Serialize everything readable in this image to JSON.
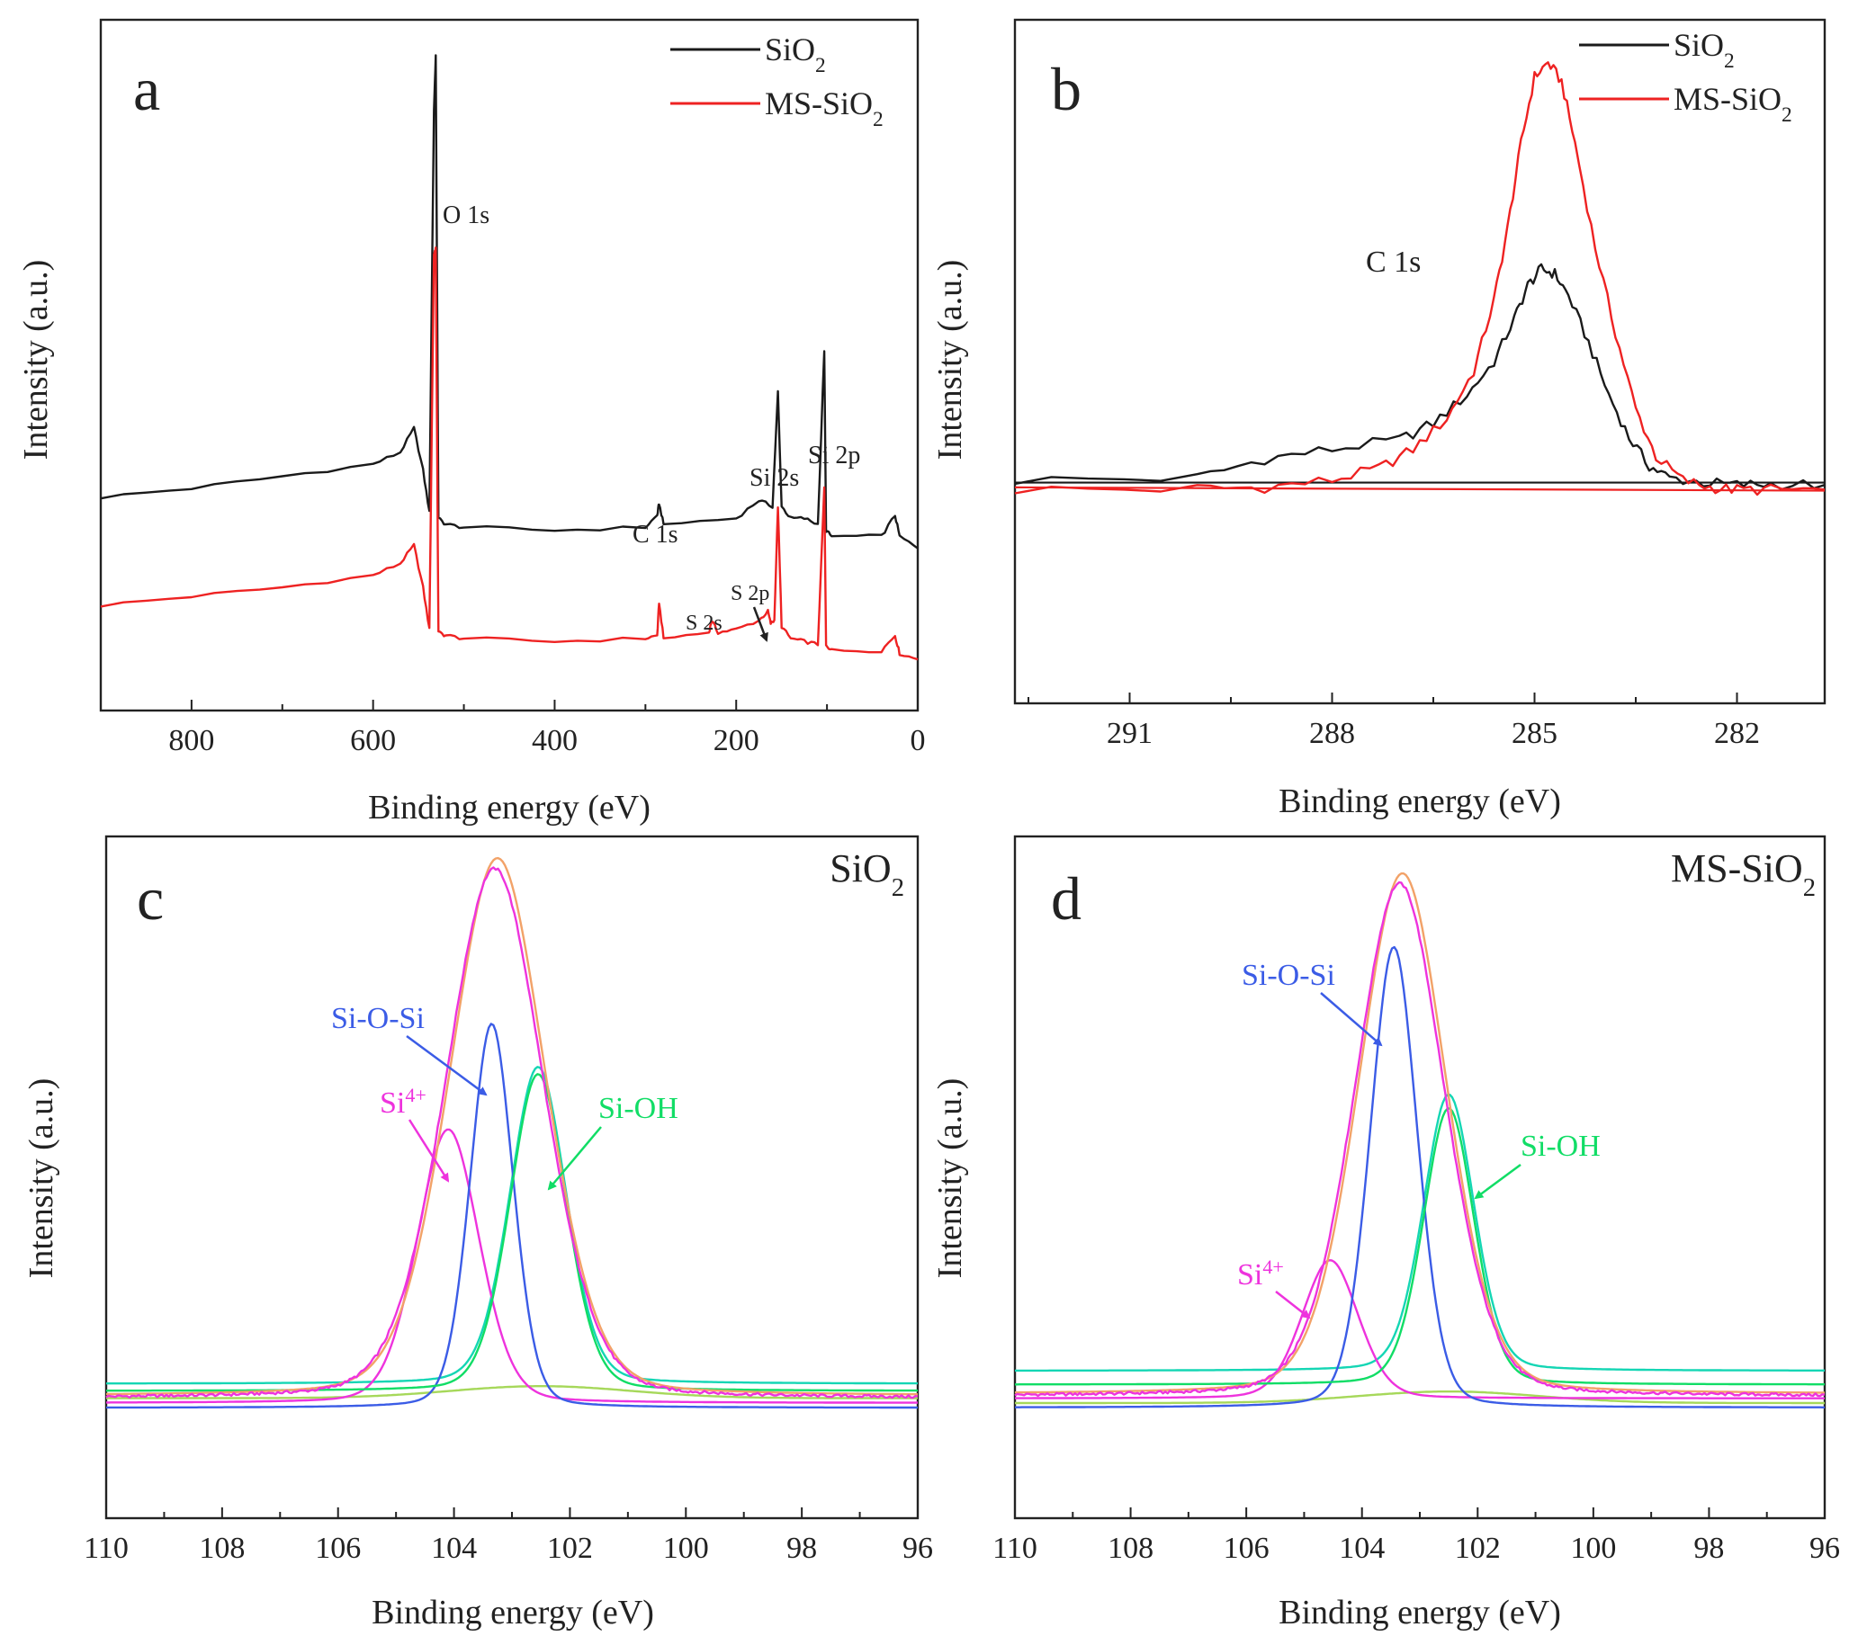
{
  "colors": {
    "sio2": "#1a1a1a",
    "ms_sio2": "#ee2222",
    "envelope": "#f2a268",
    "si4": "#ee33dd",
    "sioSi": "#3b5ce6",
    "siOH": "#11dd66",
    "fit_teal": "#14d6b4",
    "background_fit": "#a6d85a"
  },
  "chart_data": [
    {
      "panel": "a",
      "type": "line",
      "xlabel": "Binding energy (eV)",
      "ylabel": "Intensity (a.u.)",
      "xlim": [
        900,
        0
      ],
      "xticks": [
        800,
        600,
        400,
        200,
        0
      ],
      "legend": {
        "placement": "top-right",
        "entries": [
          "SiO2",
          "MS-SiO2"
        ]
      },
      "series": [
        {
          "name": "SiO2",
          "x": [
            900,
            800,
            700,
            600,
            570,
            555,
            545,
            538,
            533,
            531,
            528,
            520,
            500,
            400,
            300,
            287,
            285,
            280,
            200,
            175,
            160,
            154,
            150,
            140,
            125,
            110,
            103,
            101,
            95,
            40,
            25,
            20,
            0
          ],
          "y": [
            3.35,
            3.5,
            3.7,
            3.9,
            4.1,
            4.5,
            3.8,
            3.1,
            9.8,
            10.7,
            3.0,
            2.9,
            2.85,
            2.8,
            2.85,
            3.05,
            3.25,
            2.9,
            3.0,
            3.3,
            3.2,
            5.1,
            3.2,
            3.0,
            3.0,
            2.9,
            5.8,
            2.8,
            2.7,
            2.7,
            3.05,
            2.7,
            2.5
          ]
        },
        {
          "name": "MS-SiO2",
          "x": [
            900,
            800,
            700,
            600,
            570,
            555,
            545,
            538,
            533,
            531,
            528,
            520,
            500,
            400,
            300,
            287,
            285,
            280,
            230,
            227,
            220,
            200,
            175,
            165,
            162,
            158,
            154,
            150,
            140,
            125,
            110,
            103,
            101,
            95,
            40,
            25,
            20,
            0
          ],
          "y": [
            1.55,
            1.7,
            1.85,
            2.05,
            2.25,
            2.55,
            1.85,
            1.15,
            7.4,
            7.5,
            1.1,
            1.05,
            1.0,
            0.95,
            1.0,
            1.05,
            1.6,
            1.0,
            1.1,
            1.3,
            1.1,
            1.15,
            1.3,
            1.45,
            1.25,
            1.3,
            3.2,
            1.2,
            1.0,
            0.95,
            0.9,
            3.5,
            0.9,
            0.8,
            0.8,
            1.05,
            0.75,
            0.65
          ]
        }
      ],
      "annotations": [
        "O 1s",
        "C 1s",
        "Si 2s",
        "Si 2p",
        "S 2s",
        "S 2p"
      ]
    },
    {
      "panel": "b",
      "type": "line",
      "xlabel": "Binding energy (eV)",
      "ylabel": "Intensity (a.u.)",
      "xlim": [
        292.7,
        280.7
      ],
      "xticks": [
        291,
        288,
        285,
        282
      ],
      "legend": {
        "placement": "top-right",
        "entries": [
          "SiO2",
          "MS-SiO2"
        ]
      },
      "series": [
        {
          "name": "SiO2",
          "x": [
            292.7,
            290,
            289,
            288,
            287,
            286.5,
            286,
            285.6,
            285.3,
            285.1,
            284.9,
            284.7,
            284.5,
            284.2,
            283.9,
            283.6,
            283.3,
            283,
            282.5,
            282,
            281.5,
            280.7
          ],
          "y": [
            0.1,
            0.15,
            0.55,
            0.75,
            0.95,
            1.3,
            1.9,
            2.6,
            3.5,
            4.2,
            4.55,
            4.45,
            4.0,
            3.0,
            1.9,
            1.0,
            0.4,
            0.15,
            0.05,
            0.0,
            0.02,
            0.0
          ],
          "baseline": [
            0.05,
            0.05
          ]
        },
        {
          "name": "MS-SiO2",
          "x": [
            292.7,
            290,
            289,
            288,
            287.3,
            286.8,
            286.3,
            285.9,
            285.6,
            285.4,
            285.2,
            285.0,
            284.8,
            284.6,
            284.4,
            284.1,
            283.8,
            283.5,
            283.2,
            282.8,
            282.4,
            282,
            281.5,
            280.7
          ],
          "y": [
            -0.1,
            -0.08,
            -0.05,
            0.1,
            0.35,
            0.75,
            1.4,
            2.4,
            3.9,
            5.4,
            7.2,
            8.6,
            8.9,
            8.5,
            7.2,
            5.0,
            3.2,
            1.6,
            0.6,
            0.1,
            -0.05,
            -0.1,
            -0.1,
            -0.1
          ],
          "baseline": [
            -0.05,
            -0.12
          ]
        }
      ],
      "annotations": [
        "C 1s"
      ]
    },
    {
      "panel": "c",
      "type": "line",
      "title": "SiO2",
      "xlabel": "Binding energy (eV)",
      "ylabel": "Intensity (a.u.)",
      "xlim": [
        110,
        96
      ],
      "xticks": [
        110,
        108,
        106,
        104,
        102,
        100,
        98,
        96
      ],
      "components": [
        {
          "name": "Si4+",
          "center": 104.1,
          "height": 5.7,
          "width": 0.55,
          "offset": 0.0,
          "color_key": "si4"
        },
        {
          "name": "Si-O-Si",
          "center": 103.35,
          "height": 8.0,
          "width": 0.38,
          "offset": -0.1,
          "color_key": "sioSi"
        },
        {
          "name": "Si-OH",
          "center": 102.55,
          "height": 6.6,
          "width": 0.5,
          "offset": 0.25,
          "color_key": "siOH"
        }
      ],
      "envelope": {
        "center": 103.25,
        "height": 11.2,
        "width": 0.85,
        "offset": 0.15,
        "color_key": "envelope"
      },
      "annotations": [
        "Si-O-Si",
        "Si4+",
        "Si-OH"
      ]
    },
    {
      "panel": "d",
      "type": "line",
      "title": "MS-SiO2",
      "xlabel": "Binding energy (eV)",
      "ylabel": "Intensity (a.u.)",
      "xlim": [
        110,
        96
      ],
      "xticks": [
        110,
        108,
        106,
        104,
        102,
        100,
        98,
        96
      ],
      "components": [
        {
          "name": "Si4+",
          "center": 104.55,
          "height": 3.0,
          "width": 0.5,
          "offset": 0.2,
          "color_key": "si4"
        },
        {
          "name": "Si-O-Si",
          "center": 103.45,
          "height": 10.0,
          "width": 0.42,
          "offset": 0.0,
          "color_key": "sioSi"
        },
        {
          "name": "Si-OH",
          "center": 102.5,
          "height": 6.0,
          "width": 0.45,
          "offset": 0.5,
          "color_key": "siOH"
        }
      ],
      "envelope": {
        "center": 103.3,
        "height": 11.3,
        "width": 0.78,
        "offset": 0.3,
        "color_key": "envelope"
      },
      "annotations": [
        "Si-O-Si",
        "Si4+",
        "Si-OH"
      ]
    }
  ]
}
